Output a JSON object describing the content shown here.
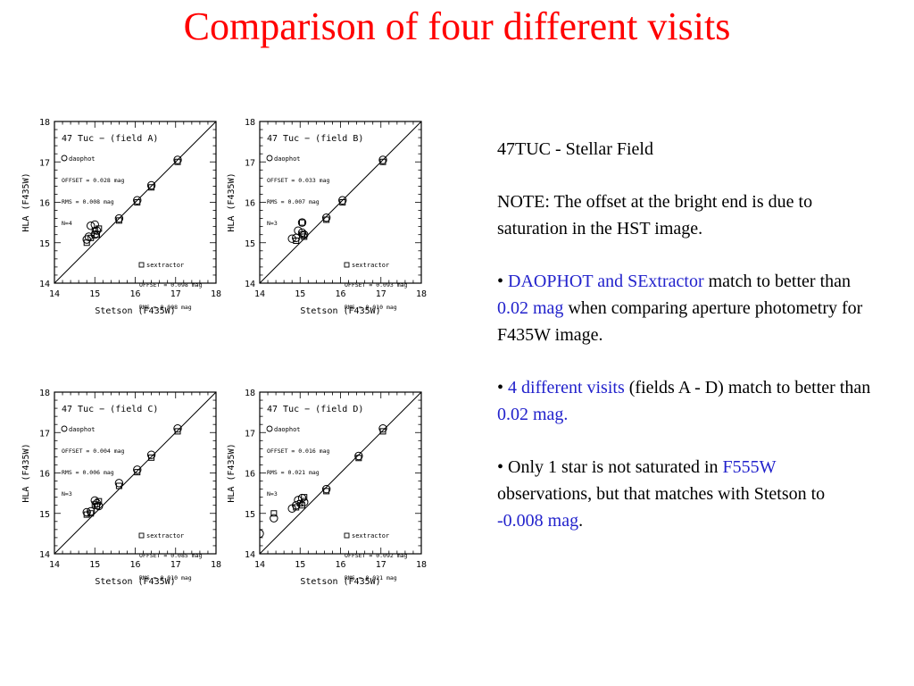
{
  "slide": {
    "title": "Comparison of four different visits"
  },
  "notes": {
    "heading": "47TUC - Stellar Field",
    "note": "NOTE: The offset at the bright end is due to saturation in the HST image.",
    "b1_prefix": "• ",
    "b1_h1": "DAOPHOT and SExtractor",
    "b1_t1": " match to better than ",
    "b1_h2": "0.02 mag",
    "b1_t2": " when comparing aperture photometry for F435W image.",
    "b2_prefix": "• ",
    "b2_h1": "4 different visits",
    "b2_t1": " (fields A - D) match to better than ",
    "b2_h2": "0.02 mag.",
    "b3_t1": "• Only 1 star is not saturated in ",
    "b3_h1": "F555W",
    "b3_t2": " observations, but that matches with Stetson to ",
    "b3_h2": "-0.008 mag",
    "b3_t3": "."
  },
  "colors": {
    "title": "#ff0000",
    "highlight": "#2222cc"
  },
  "chart_data": [
    {
      "type": "scatter",
      "title": "47 Tuc − (field A)",
      "xlabel": "Stetson (F435W)",
      "ylabel": "HLA (F435W)",
      "xlim": [
        14,
        18
      ],
      "ylim": [
        14,
        18
      ],
      "xticks": [
        14,
        15,
        16,
        17,
        18
      ],
      "yticks": [
        14,
        15,
        16,
        17,
        18
      ],
      "series": [
        {
          "name": "daophot",
          "marker": "circle",
          "stats": [
            "OFFSET = 0.028 mag",
            "RMS = 0.008 mag",
            "N=4"
          ],
          "points": [
            [
              14.8,
              15.08
            ],
            [
              14.85,
              15.15
            ],
            [
              14.9,
              15.42
            ],
            [
              15.0,
              15.45
            ],
            [
              15.05,
              15.3
            ],
            [
              15.0,
              15.2
            ],
            [
              15.6,
              15.6
            ],
            [
              16.05,
              16.05
            ],
            [
              16.4,
              16.42
            ],
            [
              17.05,
              17.05
            ]
          ]
        },
        {
          "name": "sextractor",
          "marker": "square",
          "stats": [
            "OFFSET = 0.098 mag",
            "RMS = 0.008 mag"
          ],
          "points": [
            [
              14.8,
              15.0
            ],
            [
              14.9,
              15.12
            ],
            [
              15.0,
              15.3
            ],
            [
              15.05,
              15.2
            ],
            [
              15.1,
              15.35
            ],
            [
              15.6,
              15.55
            ],
            [
              16.05,
              16.0
            ],
            [
              16.4,
              16.37
            ],
            [
              17.05,
              17.0
            ]
          ]
        }
      ]
    },
    {
      "type": "scatter",
      "title": "47 Tuc − (field B)",
      "xlabel": "Stetson (F435W)",
      "ylabel": "HLA (F435W)",
      "xlim": [
        14,
        18
      ],
      "ylim": [
        14,
        18
      ],
      "xticks": [
        14,
        15,
        16,
        17,
        18
      ],
      "yticks": [
        14,
        15,
        16,
        17,
        18
      ],
      "series": [
        {
          "name": "daophot",
          "marker": "circle",
          "stats": [
            "OFFSET = 0.033 mag",
            "RMS = 0.007 mag",
            "N=3"
          ],
          "points": [
            [
              14.8,
              15.1
            ],
            [
              14.9,
              15.12
            ],
            [
              14.95,
              15.3
            ],
            [
              15.05,
              15.5
            ],
            [
              15.05,
              15.25
            ],
            [
              15.1,
              15.2
            ],
            [
              15.65,
              15.62
            ],
            [
              16.05,
              16.05
            ],
            [
              17.05,
              17.05
            ]
          ]
        },
        {
          "name": "sextractor",
          "marker": "square",
          "stats": [
            "OFFSET = 0.093 mag",
            "RMS = 0.010 mag"
          ],
          "points": [
            [
              14.9,
              15.05
            ],
            [
              15.05,
              15.2
            ],
            [
              15.05,
              15.5
            ],
            [
              15.1,
              15.15
            ],
            [
              15.65,
              15.57
            ],
            [
              16.05,
              16.0
            ],
            [
              17.05,
              17.0
            ]
          ]
        }
      ]
    },
    {
      "type": "scatter",
      "title": "47 Tuc − (field C)",
      "xlabel": "Stetson (F435W)",
      "ylabel": "HLA (F435W)",
      "xlim": [
        14,
        18
      ],
      "ylim": [
        14,
        18
      ],
      "xticks": [
        14,
        15,
        16,
        17,
        18
      ],
      "yticks": [
        14,
        15,
        16,
        17,
        18
      ],
      "series": [
        {
          "name": "daophot",
          "marker": "circle",
          "stats": [
            "OFFSET = 0.004 mag",
            "RMS = 0.006 mag",
            "N=3"
          ],
          "points": [
            [
              14.8,
              15.03
            ],
            [
              14.9,
              15.05
            ],
            [
              15.0,
              15.32
            ],
            [
              15.05,
              15.25
            ],
            [
              15.1,
              15.18
            ],
            [
              15.6,
              15.75
            ],
            [
              16.05,
              16.08
            ],
            [
              16.4,
              16.45
            ],
            [
              17.05,
              17.1
            ]
          ]
        },
        {
          "name": "sextractor",
          "marker": "square",
          "stats": [
            "OFFSET = 0.085 mag",
            "RMS = 0.010 mag"
          ],
          "points": [
            [
              14.8,
              14.97
            ],
            [
              14.9,
              15.0
            ],
            [
              15.0,
              15.22
            ],
            [
              15.05,
              15.18
            ],
            [
              15.1,
              15.3
            ],
            [
              15.6,
              15.68
            ],
            [
              16.05,
              16.02
            ],
            [
              16.4,
              16.38
            ],
            [
              17.05,
              17.03
            ]
          ]
        }
      ]
    },
    {
      "type": "scatter",
      "title": "47 Tuc − (field D)",
      "xlabel": "Stetson (F435W)",
      "ylabel": "HLA (F435W)",
      "xlim": [
        14,
        18
      ],
      "ylim": [
        14,
        18
      ],
      "xticks": [
        14,
        15,
        16,
        17,
        18
      ],
      "yticks": [
        14,
        15,
        16,
        17,
        18
      ],
      "series": [
        {
          "name": "daophot",
          "marker": "circle",
          "stats": [
            "OFFSET = 0.016 mag",
            "RMS = 0.021 mag",
            "N=3"
          ],
          "points": [
            [
              14.0,
              14.5
            ],
            [
              14.35,
              14.88
            ],
            [
              14.8,
              15.12
            ],
            [
              14.9,
              15.2
            ],
            [
              14.95,
              15.33
            ],
            [
              15.05,
              15.38
            ],
            [
              15.1,
              15.28
            ],
            [
              15.65,
              15.6
            ],
            [
              16.45,
              16.42
            ],
            [
              17.05,
              17.1
            ]
          ]
        },
        {
          "name": "sextractor",
          "marker": "square",
          "stats": [
            "OFFSET = 0.092 mag",
            "RMS = 0.021 mag"
          ],
          "points": [
            [
              14.35,
              15.0
            ],
            [
              14.9,
              15.15
            ],
            [
              15.0,
              15.25
            ],
            [
              15.05,
              15.2
            ],
            [
              15.1,
              15.4
            ],
            [
              15.65,
              15.55
            ],
            [
              16.45,
              16.37
            ],
            [
              17.05,
              17.03
            ]
          ]
        }
      ]
    }
  ]
}
